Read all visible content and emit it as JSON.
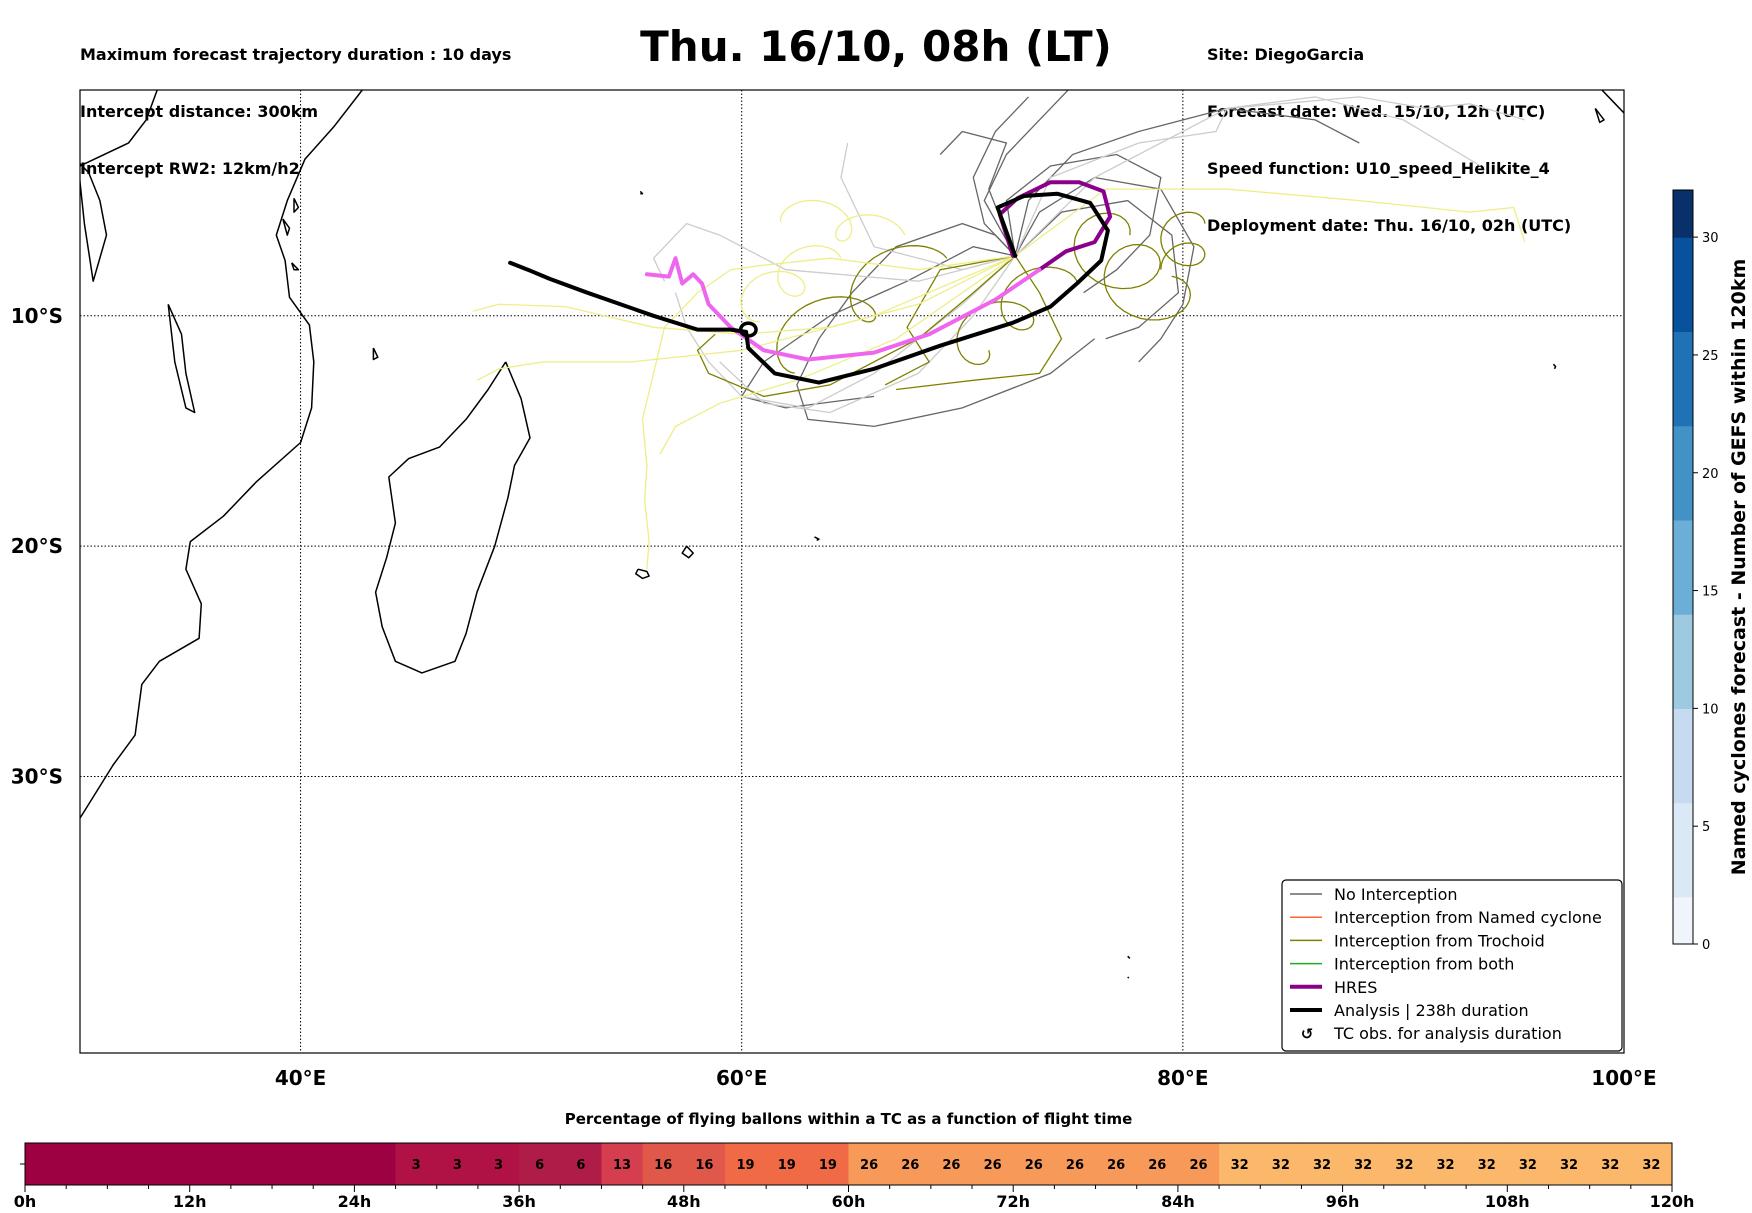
{
  "header": {
    "left": [
      "Maximum forecast trajectory duration : 10 days",
      "Intercept distance: 300km",
      "Intercept RW2: 12km/h2"
    ],
    "title": "Thu. 16/10, 08h (LT)",
    "right": [
      "Site: DiegoGarcia",
      "Forecast date: Wed. 15/10, 12h (UTC)",
      "Speed function: U10_speed_Helikite_4",
      "Deployment date: Thu. 16/10, 02h (UTC)"
    ]
  },
  "chart_data": [
    {
      "type": "line",
      "title": "Thu. 16/10, 08h (LT)",
      "xlim": [
        30,
        100
      ],
      "ylim": [
        -42,
        -0.2
      ],
      "x_ticks": [
        "40°E",
        "60°E",
        "80°E",
        "100°E"
      ],
      "x_tick_values": [
        40,
        60,
        80,
        100
      ],
      "y_ticks": [
        "10°S",
        "20°S",
        "30°S"
      ],
      "y_tick_values": [
        -10,
        -20,
        -30
      ],
      "grid": true,
      "legend_position": "bottom-right",
      "legend": [
        {
          "label": "No Interception",
          "color": "#666666",
          "style": "thin"
        },
        {
          "label": "Interception from Named cyclone",
          "color": "#ff6633",
          "style": "thin"
        },
        {
          "label": "Interception from Trochoid",
          "color": "#808000",
          "style": "thin"
        },
        {
          "label": "Interception from both",
          "color": "#22aa22",
          "style": "thin"
        },
        {
          "label": "HRES",
          "color": "#8b008b",
          "style": "thick"
        },
        {
          "label": "Analysis | 238h duration",
          "color": "#000000",
          "style": "thick"
        },
        {
          "label": "TC obs. for analysis duration",
          "color": "#000000",
          "style": "marker"
        }
      ],
      "series": [
        {
          "name": "HRES",
          "color": "#8b008b",
          "points": [
            [
              72.3,
              -7.4
            ],
            [
              71.7,
              -5.6
            ],
            [
              72.5,
              -4.9
            ],
            [
              74.0,
              -4.2
            ],
            [
              75.3,
              -4.2
            ],
            [
              76.4,
              -4.6
            ],
            [
              76.7,
              -5.7
            ],
            [
              76.0,
              -6.8
            ],
            [
              74.7,
              -7.2
            ],
            [
              73.5,
              -8.0
            ]
          ]
        },
        {
          "name": "HRES (pink)",
          "color": "#ee66ee",
          "points": [
            [
              73.5,
              -8.0
            ],
            [
              71.5,
              -9.3
            ],
            [
              68.5,
              -10.8
            ],
            [
              66.0,
              -11.6
            ],
            [
              63.0,
              -11.9
            ],
            [
              61.0,
              -11.5
            ],
            [
              59.5,
              -10.5
            ],
            [
              58.5,
              -9.5
            ],
            [
              58.2,
              -8.6
            ],
            [
              57.8,
              -8.2
            ],
            [
              57.3,
              -8.6
            ],
            [
              57.0,
              -7.5
            ],
            [
              56.7,
              -8.3
            ],
            [
              55.7,
              -8.2
            ]
          ]
        },
        {
          "name": "Analysis | 238h duration",
          "color": "#000000",
          "points": [
            [
              72.4,
              -7.4
            ],
            [
              71.6,
              -5.3
            ],
            [
              72.8,
              -4.8
            ],
            [
              74.3,
              -4.7
            ],
            [
              75.8,
              -5.1
            ],
            [
              76.6,
              -6.3
            ],
            [
              76.3,
              -7.6
            ],
            [
              75.2,
              -8.6
            ],
            [
              74.0,
              -9.6
            ],
            [
              72.3,
              -10.3
            ],
            [
              69.0,
              -11.3
            ],
            [
              66.0,
              -12.3
            ],
            [
              63.5,
              -12.9
            ],
            [
              61.5,
              -12.5
            ],
            [
              60.3,
              -11.4
            ],
            [
              60.2,
              -10.7
            ],
            [
              59.5,
              -10.6
            ],
            [
              58.0,
              -10.6
            ],
            [
              56.0,
              -10.0
            ],
            [
              53.0,
              -9.0
            ],
            [
              51.3,
              -8.4
            ],
            [
              50.3,
              -8.0
            ],
            [
              49.5,
              -7.7
            ]
          ]
        }
      ],
      "trajectories": {
        "no_interception_color": "#666666",
        "light_color": "#cccccc",
        "trochoid_color": "#808000",
        "pale_color": "#eeee88"
      },
      "coastlines": {
        "color": "#000000"
      }
    },
    {
      "type": "heatmap",
      "title": "Percentage of flying ballons within a TC as a function of flight time",
      "x_ticks": [
        "0h",
        "12h",
        "24h",
        "36h",
        "48h",
        "60h",
        "72h",
        "84h",
        "96h",
        "108h",
        "120h"
      ],
      "x_range": [
        0,
        120
      ],
      "cell_width_h": 3,
      "values": [
        null,
        null,
        null,
        null,
        null,
        null,
        null,
        null,
        null,
        3,
        3,
        3,
        6,
        6,
        13,
        16,
        16,
        19,
        19,
        19,
        26,
        26,
        26,
        26,
        26,
        26,
        26,
        26,
        26,
        32,
        32,
        32,
        32,
        32,
        32,
        32,
        32,
        32,
        32,
        32
      ],
      "value_colors": {
        "0": "#9e0142",
        "3": "#b11246",
        "6": "#b01c48",
        "13": "#d53e4f",
        "16": "#e0584a",
        "19": "#f06a45",
        "26": "#f79a59",
        "32": "#fbb76a"
      }
    },
    {
      "type": "heatmap",
      "title": "colorbar",
      "ylabel": "Named cyclones forecast - Number of GEFS within 120km",
      "range": [
        0,
        32
      ],
      "ticks": [
        0,
        5,
        10,
        15,
        20,
        25,
        30
      ],
      "colors": [
        "#f0f5fc",
        "#dbe9f6",
        "#c6dbef",
        "#9ecae1",
        "#6baed6",
        "#4292c6",
        "#2171b5",
        "#08519c",
        "#08306b"
      ]
    }
  ]
}
